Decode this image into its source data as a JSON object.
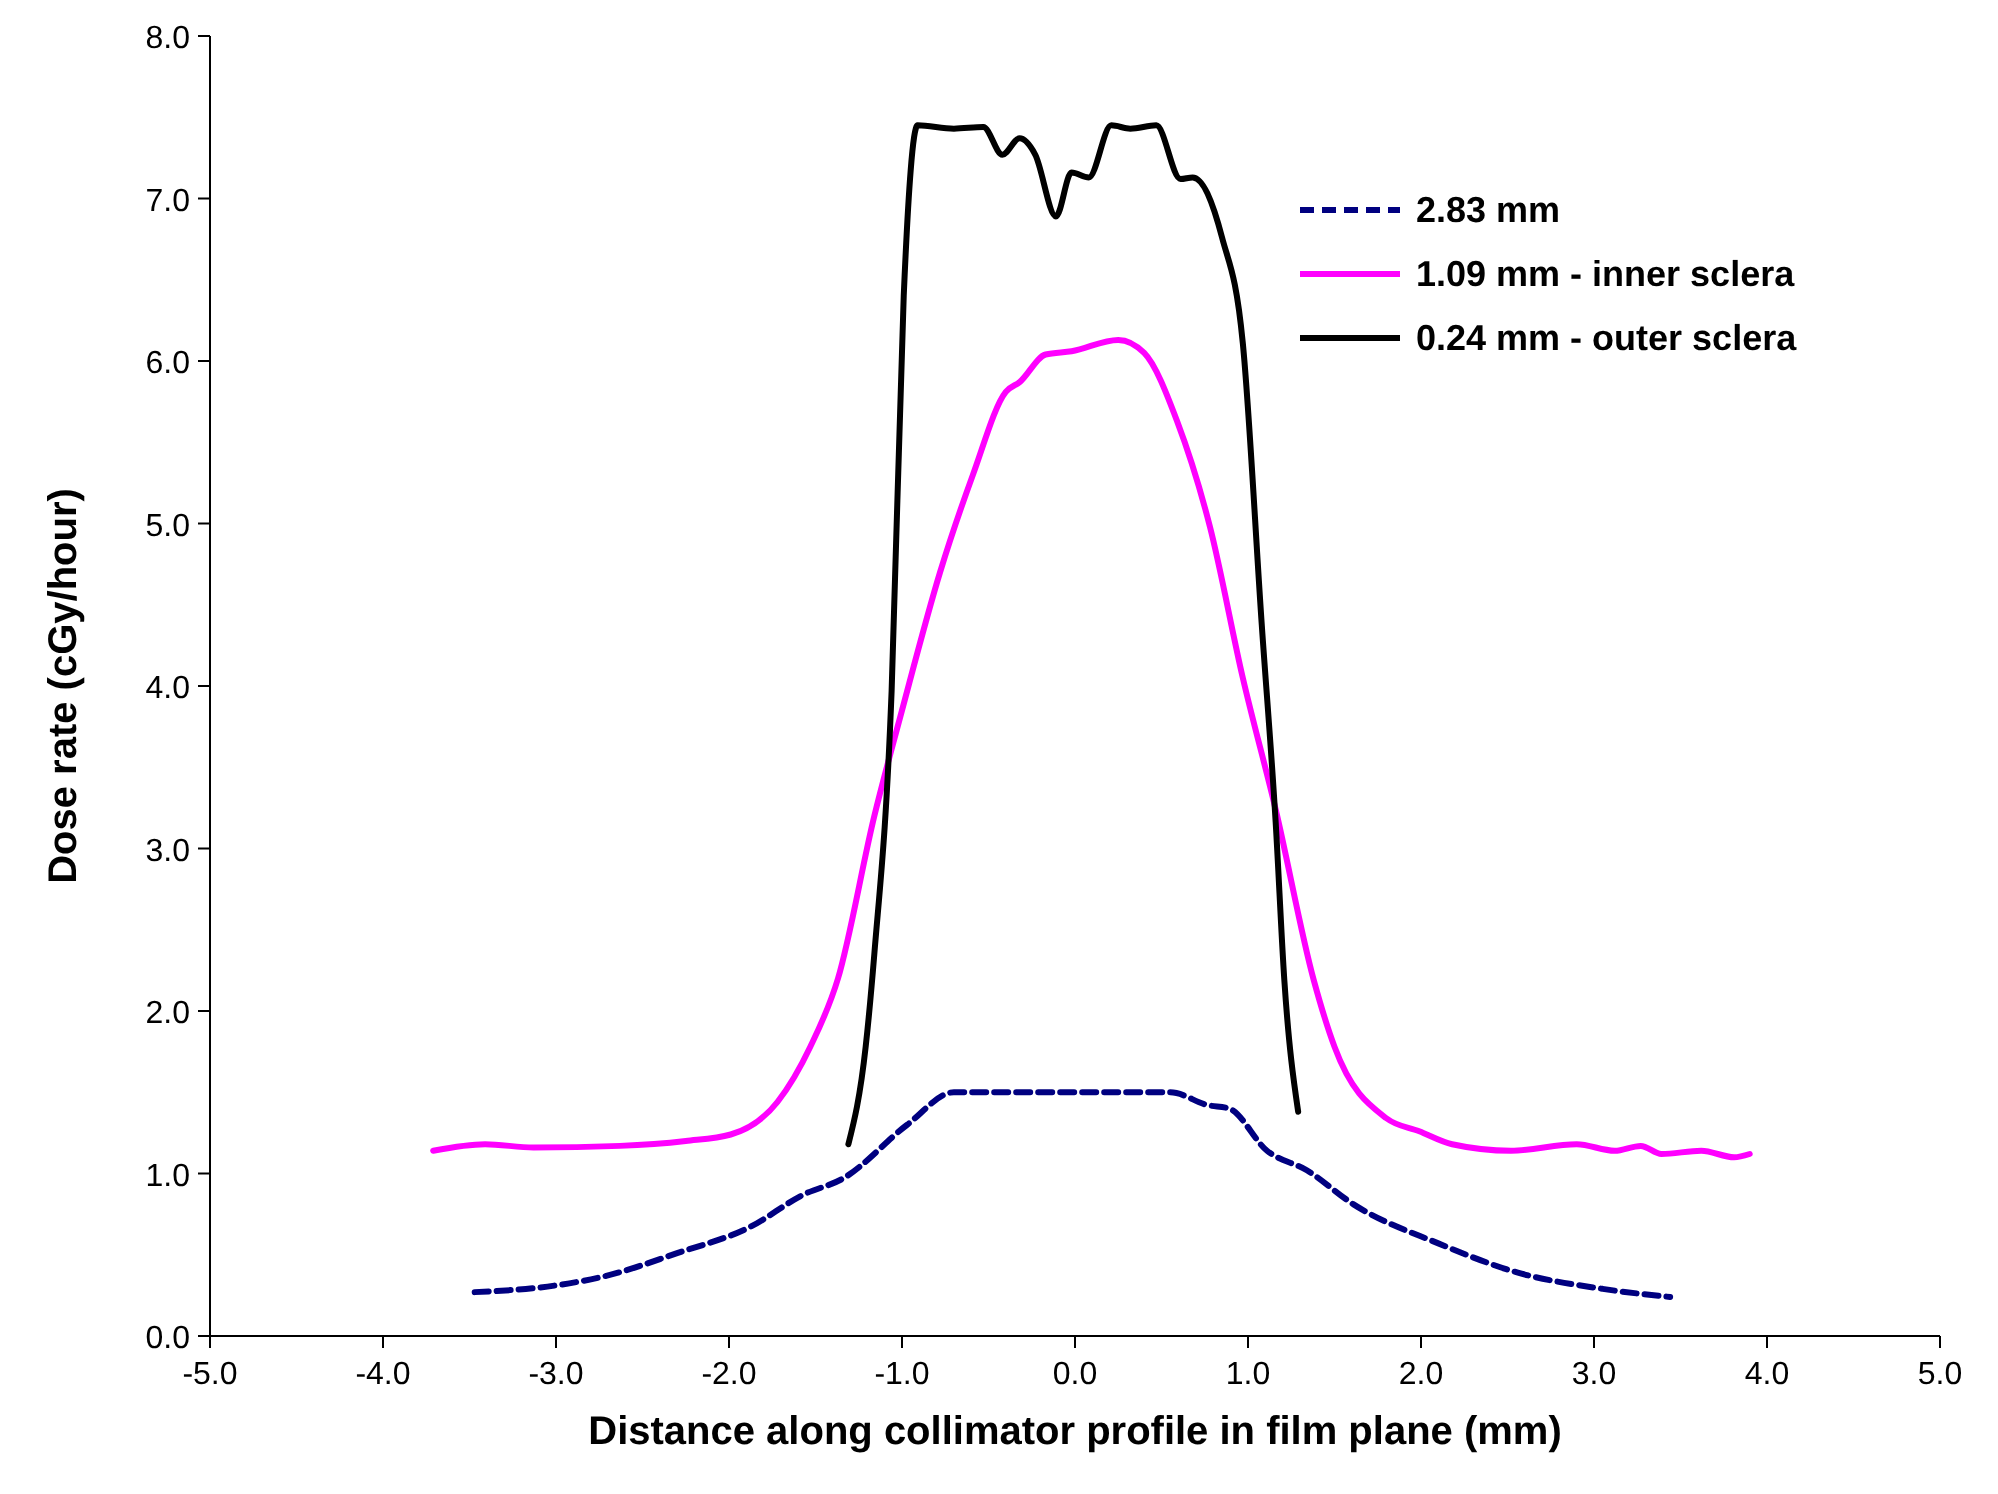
{
  "chart_data": {
    "type": "line",
    "xlabel": "Distance along collimator profile in film plane (mm)",
    "ylabel": "Dose rate (cGy/hour)",
    "xlim": [
      -5,
      5
    ],
    "xticks": [
      {
        "value": -5,
        "label": "-5.0"
      },
      {
        "value": -4,
        "label": "-4.0"
      },
      {
        "value": -3,
        "label": "-3.0"
      },
      {
        "value": -2,
        "label": "-2.0"
      },
      {
        "value": -1,
        "label": "-1.0"
      },
      {
        "value": 0,
        "label": "0.0"
      },
      {
        "value": 1,
        "label": "1.0"
      },
      {
        "value": 2,
        "label": "2.0"
      },
      {
        "value": 3,
        "label": "3.0"
      },
      {
        "value": 4,
        "label": "4.0"
      },
      {
        "value": 5,
        "label": "5.0"
      }
    ],
    "ylim": [
      0,
      8
    ],
    "yticks": [
      {
        "value": 0,
        "label": "0.0"
      },
      {
        "value": 1,
        "label": "1.0"
      },
      {
        "value": 2,
        "label": "2.0"
      },
      {
        "value": 3,
        "label": "3.0"
      },
      {
        "value": 4,
        "label": "4.0"
      },
      {
        "value": 5,
        "label": "5.0"
      },
      {
        "value": 6,
        "label": "6.0"
      },
      {
        "value": 7,
        "label": "7.0"
      },
      {
        "value": 8,
        "label": "8.0"
      }
    ],
    "grid": false,
    "legend": "top right",
    "series": [
      {
        "name": "2.83 mm",
        "color": "#000080",
        "line_style": "dashed",
        "x": [
          -3.47,
          -3.01,
          -2.71,
          -2.3,
          -1.88,
          -1.57,
          -1.34,
          -0.97,
          -0.7,
          0.55,
          0.77,
          0.89,
          1.11,
          1.34,
          1.61,
          2.1,
          2.56,
          3.05,
          3.44
        ],
        "values": [
          0.27,
          0.31,
          0.37,
          0.51,
          0.67,
          0.87,
          0.97,
          1.3,
          1.5,
          1.5,
          1.42,
          1.4,
          1.14,
          1.02,
          0.81,
          0.57,
          0.39,
          0.29,
          0.24
        ]
      },
      {
        "name": "1.09 mm - inner sclera",
        "color": "#ff00ff",
        "line_style": "solid",
        "x": [
          -3.71,
          -3.41,
          -3.13,
          -2.63,
          -2.25,
          -1.99,
          -1.72,
          -1.53,
          -1.37,
          -1.16,
          -1.0,
          -0.78,
          -0.59,
          -0.4,
          -0.32,
          -0.17,
          -0.02,
          0.25,
          0.4,
          0.59,
          0.78,
          0.97,
          1.16,
          1.38,
          1.5,
          1.8,
          1.99,
          2.18,
          2.52,
          2.9,
          3.12,
          3.27,
          3.39,
          3.62,
          3.81,
          3.9
        ],
        "values": [
          1.14,
          1.18,
          1.16,
          1.17,
          1.2,
          1.24,
          1.44,
          1.78,
          2.2,
          3.2,
          3.85,
          4.7,
          5.3,
          5.81,
          5.87,
          6.04,
          6.06,
          6.13,
          6.05,
          5.63,
          4.98,
          4.05,
          3.24,
          2.19,
          1.78,
          1.34,
          1.26,
          1.18,
          1.14,
          1.18,
          1.14,
          1.17,
          1.12,
          1.14,
          1.1,
          1.12
        ]
      },
      {
        "name": "0.24 mm - outer sclera",
        "color": "#000000",
        "line_style": "solid",
        "x": [
          -1.31,
          -1.21,
          -1.16,
          -1.06,
          -0.99,
          -0.91,
          -0.7,
          -0.53,
          -0.42,
          -0.32,
          -0.23,
          -0.11,
          -0.02,
          0.08,
          0.21,
          0.32,
          0.47,
          0.61,
          0.68,
          0.85,
          0.97,
          1.08,
          1.16,
          1.21,
          1.29
        ],
        "values": [
          1.18,
          1.78,
          2.35,
          3.97,
          6.4,
          7.45,
          7.43,
          7.44,
          7.27,
          7.37,
          7.27,
          6.89,
          7.16,
          7.13,
          7.45,
          7.43,
          7.45,
          7.12,
          7.13,
          6.76,
          6.11,
          4.37,
          3.16,
          2.19,
          1.38
        ]
      }
    ]
  }
}
